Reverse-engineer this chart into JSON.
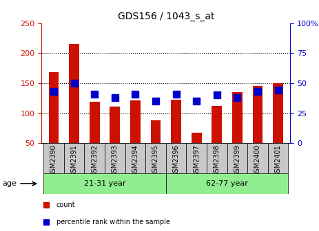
{
  "title": "GDS156 / 1043_s_at",
  "categories": [
    "GSM2390",
    "GSM2391",
    "GSM2392",
    "GSM2393",
    "GSM2394",
    "GSM2395",
    "GSM2396",
    "GSM2397",
    "GSM2398",
    "GSM2399",
    "GSM2400",
    "GSM2401"
  ],
  "counts": [
    168,
    215,
    119,
    111,
    121,
    88,
    122,
    67,
    112,
    135,
    145,
    150
  ],
  "percentiles": [
    43,
    50,
    41,
    38,
    41,
    35,
    41,
    35,
    40,
    38,
    43,
    44
  ],
  "bar_color": "#CC1100",
  "dot_color": "#0000CC",
  "ylim_left": [
    50,
    250
  ],
  "ylim_right": [
    0,
    100
  ],
  "yticks_left": [
    50,
    100,
    150,
    200,
    250
  ],
  "yticks_right": [
    0,
    25,
    50,
    75,
    100
  ],
  "group1_label": "21-31 year",
  "group2_label": "62-77 year",
  "group1_indices": [
    0,
    1,
    2,
    3,
    4,
    5
  ],
  "group2_indices": [
    6,
    7,
    8,
    9,
    10,
    11
  ],
  "age_label": "age",
  "legend_count": "count",
  "legend_percentile": "percentile rank within the sample",
  "group_bg_color": "#90EE90",
  "bar_width": 0.5,
  "dot_size": 50,
  "gridlines": [
    100,
    150,
    200
  ]
}
